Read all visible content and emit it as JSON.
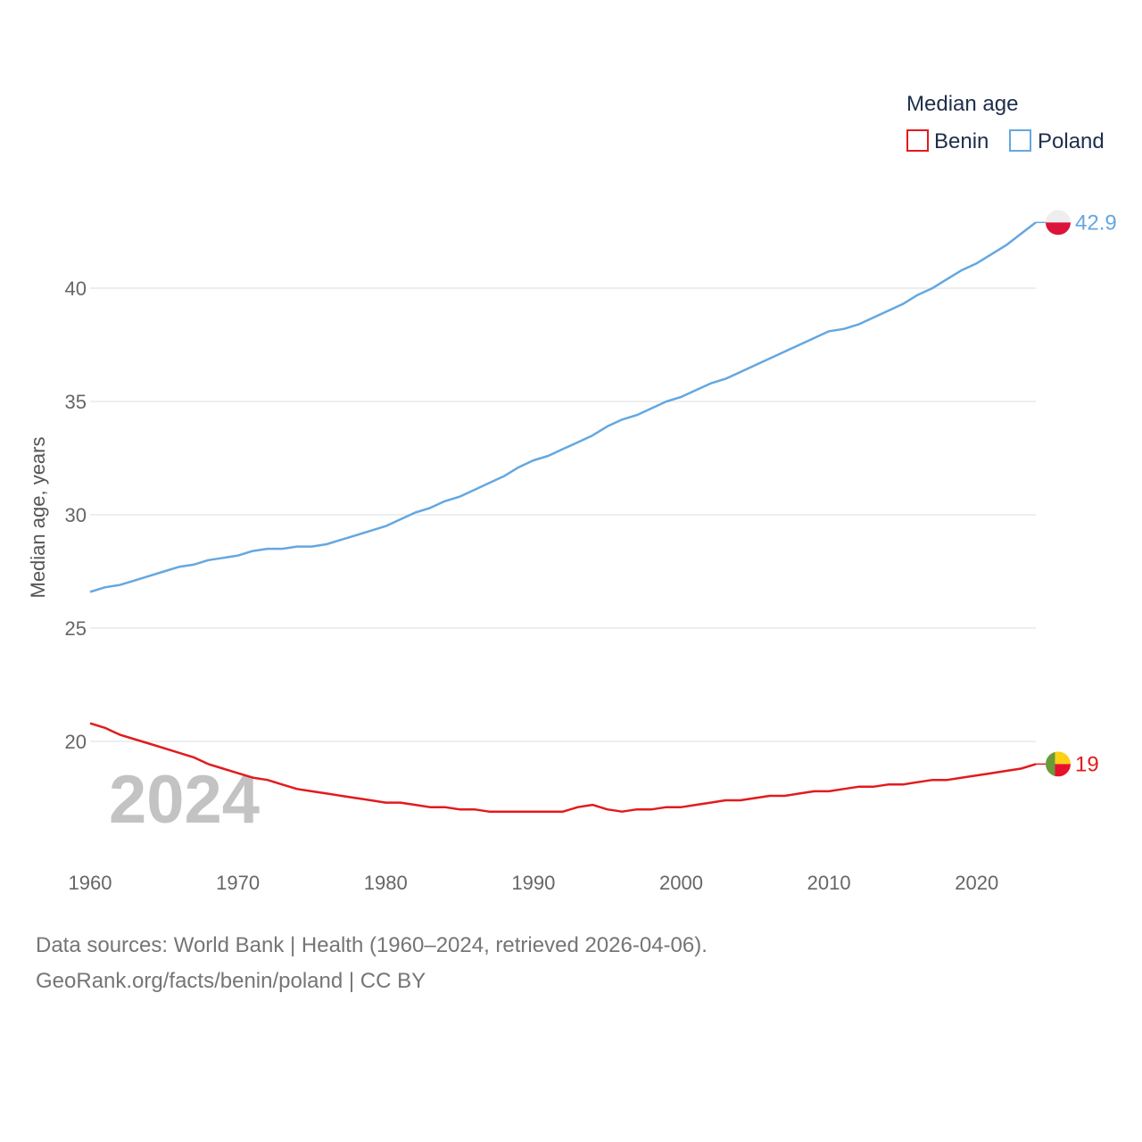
{
  "chart_data": {
    "type": "line",
    "legend_title": "Median age",
    "ylabel": "Median age, years",
    "xlabel": "",
    "xlim": [
      1960,
      2024
    ],
    "ylim": [
      16,
      43
    ],
    "y_ticks": [
      20,
      25,
      30,
      35,
      40
    ],
    "x_ticks": [
      1960,
      1970,
      1980,
      1990,
      2000,
      2010,
      2020
    ],
    "year_watermark": "2024",
    "legend_placement": "top-right",
    "series": [
      {
        "name": "Benin",
        "color": "#e31a1c",
        "end_label": "19",
        "flag_icon": "benin-flag-icon",
        "x": [
          1960,
          1961,
          1962,
          1963,
          1964,
          1965,
          1966,
          1967,
          1968,
          1969,
          1970,
          1971,
          1972,
          1973,
          1974,
          1975,
          1976,
          1977,
          1978,
          1979,
          1980,
          1981,
          1982,
          1983,
          1984,
          1985,
          1986,
          1987,
          1988,
          1989,
          1990,
          1991,
          1992,
          1993,
          1994,
          1995,
          1996,
          1997,
          1998,
          1999,
          2000,
          2001,
          2002,
          2003,
          2004,
          2005,
          2006,
          2007,
          2008,
          2009,
          2010,
          2011,
          2012,
          2013,
          2014,
          2015,
          2016,
          2017,
          2018,
          2019,
          2020,
          2021,
          2022,
          2023,
          2024
        ],
        "values": [
          20.8,
          20.6,
          20.3,
          20.1,
          19.9,
          19.7,
          19.5,
          19.3,
          19.0,
          18.8,
          18.6,
          18.4,
          18.3,
          18.1,
          17.9,
          17.8,
          17.7,
          17.6,
          17.5,
          17.4,
          17.3,
          17.3,
          17.2,
          17.1,
          17.1,
          17.0,
          17.0,
          16.9,
          16.9,
          16.9,
          16.9,
          16.9,
          16.9,
          17.1,
          17.2,
          17.0,
          16.9,
          17.0,
          17.0,
          17.1,
          17.1,
          17.2,
          17.3,
          17.4,
          17.4,
          17.5,
          17.6,
          17.6,
          17.7,
          17.8,
          17.8,
          17.9,
          18.0,
          18.0,
          18.1,
          18.1,
          18.2,
          18.3,
          18.3,
          18.4,
          18.5,
          18.6,
          18.7,
          18.8,
          19.0
        ]
      },
      {
        "name": "Poland",
        "color": "#64a7e0",
        "end_label": "42.9",
        "flag_icon": "poland-flag-icon",
        "x": [
          1960,
          1961,
          1962,
          1963,
          1964,
          1965,
          1966,
          1967,
          1968,
          1969,
          1970,
          1971,
          1972,
          1973,
          1974,
          1975,
          1976,
          1977,
          1978,
          1979,
          1980,
          1981,
          1982,
          1983,
          1984,
          1985,
          1986,
          1987,
          1988,
          1989,
          1990,
          1991,
          1992,
          1993,
          1994,
          1995,
          1996,
          1997,
          1998,
          1999,
          2000,
          2001,
          2002,
          2003,
          2004,
          2005,
          2006,
          2007,
          2008,
          2009,
          2010,
          2011,
          2012,
          2013,
          2014,
          2015,
          2016,
          2017,
          2018,
          2019,
          2020,
          2021,
          2022,
          2023,
          2024
        ],
        "values": [
          26.6,
          26.8,
          26.9,
          27.1,
          27.3,
          27.5,
          27.7,
          27.8,
          28.0,
          28.1,
          28.2,
          28.4,
          28.5,
          28.5,
          28.6,
          28.6,
          28.7,
          28.9,
          29.1,
          29.3,
          29.5,
          29.8,
          30.1,
          30.3,
          30.6,
          30.8,
          31.1,
          31.4,
          31.7,
          32.1,
          32.4,
          32.6,
          32.9,
          33.2,
          33.5,
          33.9,
          34.2,
          34.4,
          34.7,
          35.0,
          35.2,
          35.5,
          35.8,
          36.0,
          36.3,
          36.6,
          36.9,
          37.2,
          37.5,
          37.8,
          38.1,
          38.2,
          38.4,
          38.7,
          39.0,
          39.3,
          39.7,
          40.0,
          40.4,
          40.8,
          41.1,
          41.5,
          41.9,
          42.4,
          42.9
        ]
      }
    ]
  },
  "footer": {
    "sources": "Data sources: World Bank | Health (1960–2024, retrieved 2026-04-06).",
    "credit": "GeoRank.org/facts/benin/poland | CC BY"
  }
}
